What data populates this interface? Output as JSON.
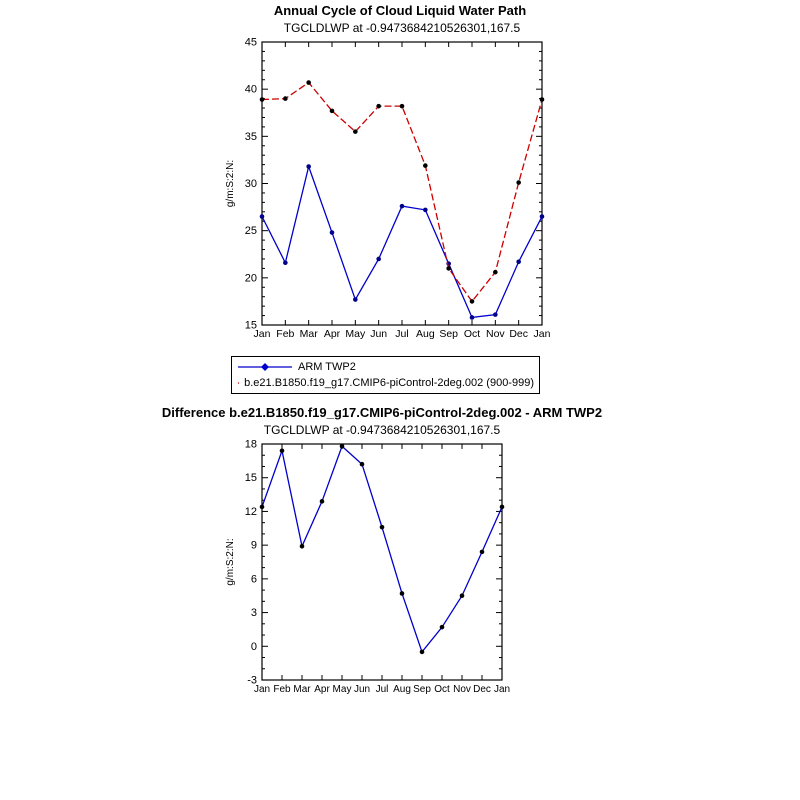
{
  "page": {
    "background": "#ffffff"
  },
  "chart_data": [
    {
      "type": "line",
      "title": "Annual Cycle of Cloud Liquid Water Path",
      "subtitle": "TGCLDLWP at -0.9473684210526301,167.5",
      "ylabel": "g/m:S:2:N:",
      "xlabel": "",
      "categories": [
        "Jan",
        "Feb",
        "Mar",
        "Apr",
        "May",
        "Jun",
        "Jul",
        "Aug",
        "Sep",
        "Oct",
        "Nov",
        "Dec",
        "Jan"
      ],
      "ylim": [
        15,
        45
      ],
      "yticks": [
        15,
        20,
        25,
        30,
        35,
        40,
        45
      ],
      "yminor_step": 1,
      "grid": false,
      "legend": {
        "position": "below-left",
        "border": true
      },
      "series": [
        {
          "name": "ARM TWP2",
          "color": "#0000cc",
          "line": "solid",
          "marker": "circle",
          "marker_color": "#00008b",
          "legend_marker": "diamond",
          "values": [
            26.5,
            21.6,
            31.8,
            24.8,
            17.7,
            22.0,
            27.6,
            27.2,
            21.5,
            15.8,
            16.1,
            21.7,
            26.5
          ]
        },
        {
          "name": "b.e21.B1850.f19_g17.CMIP6-piControl-2deg.002 (900-999)",
          "color": "#cc0000",
          "line": "dashed",
          "marker": "circle",
          "marker_color": "#000000",
          "legend_marker": "circle",
          "values": [
            38.9,
            39.0,
            40.7,
            37.7,
            35.5,
            38.2,
            38.2,
            31.9,
            21.0,
            17.5,
            20.6,
            30.1,
            38.9
          ]
        }
      ]
    },
    {
      "type": "line",
      "title": "Difference b.e21.B1850.f19_g17.CMIP6-piControl-2deg.002 - ARM TWP2",
      "subtitle": "TGCLDLWP at -0.9473684210526301,167.5",
      "ylabel": "g/m:S:2:N:",
      "xlabel": "",
      "categories": [
        "Jan",
        "Feb",
        "Mar",
        "Apr",
        "May",
        "Jun",
        "Jul",
        "Aug",
        "Sep",
        "Oct",
        "Nov",
        "Dec",
        "Jan"
      ],
      "ylim": [
        -3,
        18
      ],
      "yticks": [
        -3,
        0,
        3,
        6,
        9,
        12,
        15,
        18
      ],
      "yminor_step": 1,
      "grid": false,
      "legend": {
        "position": "none",
        "border": false
      },
      "series": [
        {
          "name": "difference",
          "color": "#0000cc",
          "line": "solid",
          "marker": "circle",
          "marker_color": "#000000",
          "legend_marker": "none",
          "values": [
            12.4,
            17.4,
            8.9,
            12.9,
            17.8,
            16.2,
            10.6,
            4.7,
            -0.5,
            1.7,
            4.5,
            8.4,
            12.4
          ]
        }
      ]
    }
  ]
}
